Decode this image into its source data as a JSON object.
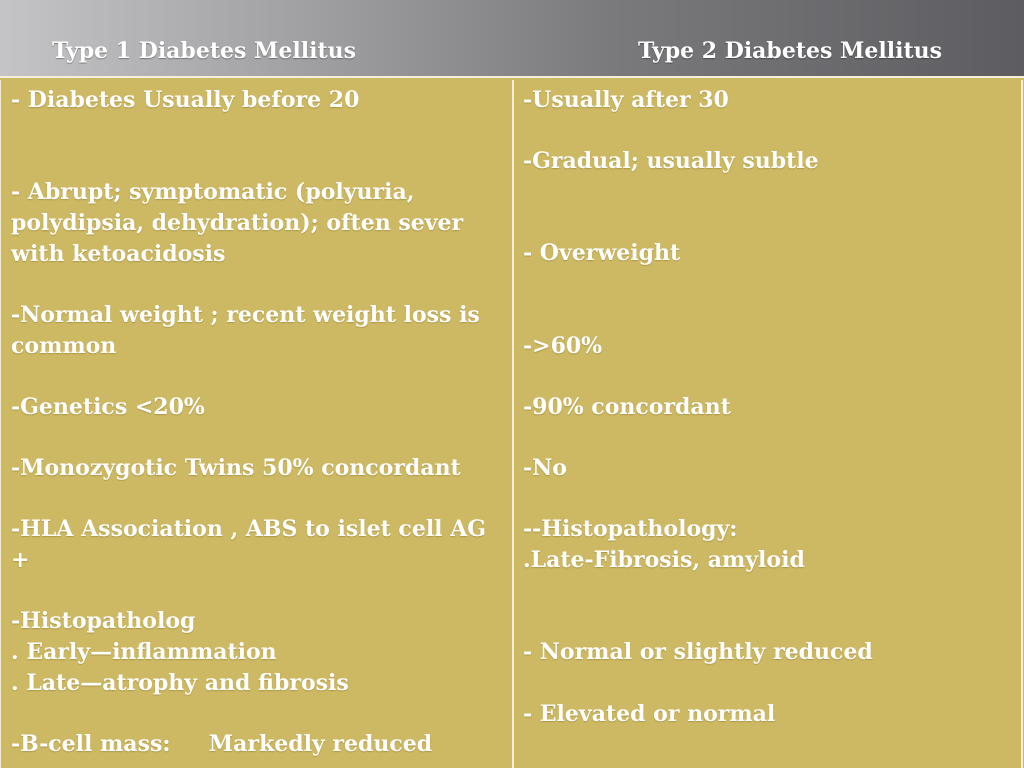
{
  "header": {
    "left_title": "Type 1 Diabetes Mellitus",
    "right_title": "Type 2 Diabetes Mellitus"
  },
  "type1": {
    "age": "- Diabetes Usually before 20",
    "onset_1": "- Abrupt; symptomatic (polyuria,",
    "onset_2": "polydipsia, dehydration); often sever",
    "onset_3": "with ketoacidosis",
    "weight_1": "-Normal weight ; recent weight loss is",
    "weight_2": "common",
    "genetics": "-Genetics <20%",
    "twins": "-Monozygotic Twins 50% concordant",
    "hla_1": "-HLA Association , ABS to islet cell AG",
    "hla_2": "+",
    "histo_title": "-Histopatholog",
    "histo_early": ". Early—inflammation",
    "histo_late": ". Late—atrophy and fibrosis",
    "bcell": "-B-cell mass:     Markedly reduced"
  },
  "type2": {
    "age": "-Usually after 30",
    "onset": "-Gradual; usually subtle",
    "weight": "- Overweight",
    "genetics": "->60%",
    "twins": "-90% concordant",
    "hla": "-No",
    "histo_title": "--Histopathology:",
    "histo_late": ".Late-Fibrosis, amyloid",
    "bcell": "- Normal or slightly reduced",
    "last": "- Elevated or normal"
  }
}
